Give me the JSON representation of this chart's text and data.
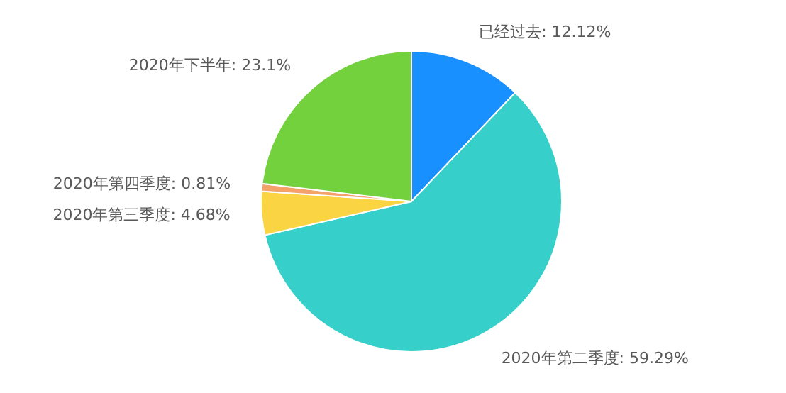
{
  "chart_data": {
    "type": "pie",
    "categories": [
      "已经过去",
      "2020年第二季度",
      "2020年第三季度",
      "2020年第四季度",
      "2020年下半年"
    ],
    "values": [
      12.12,
      59.29,
      4.68,
      0.81,
      23.1
    ],
    "value_labels": [
      "12.12%",
      "59.29%",
      "4.68%",
      "0.81%",
      "23.1%"
    ],
    "colors": [
      "#1890ff",
      "#36cfc9",
      "#fbd444",
      "#f3a26a",
      "#73d13d"
    ]
  }
}
